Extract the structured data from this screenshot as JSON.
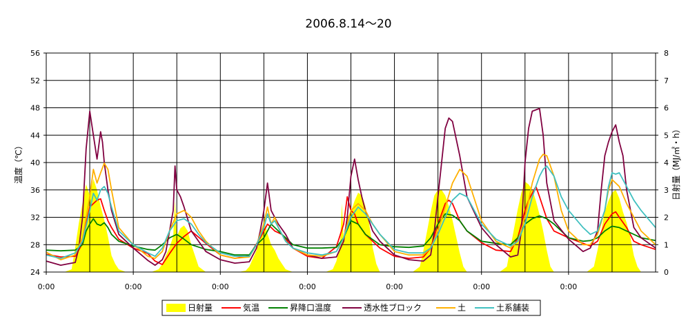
{
  "chart_data": {
    "type": "line",
    "title": "2006.8.14～20",
    "ylabel": "温度（℃）",
    "y2label": "日射量（MJ/㎡・h）",
    "ylim": [
      24,
      56
    ],
    "yticks": [
      24,
      28,
      32,
      36,
      40,
      44,
      48,
      52,
      56
    ],
    "y2lim": [
      0,
      8
    ],
    "y2ticks": [
      0,
      1,
      2,
      3,
      4,
      5,
      6,
      7,
      8
    ],
    "xlim": [
      0,
      168
    ],
    "xticks": [
      0,
      24,
      48,
      72,
      96,
      120,
      144
    ],
    "xtick_labels": [
      "0:00",
      "0:00",
      "0:00",
      "0:00",
      "0:00",
      "0:00",
      "0:00"
    ],
    "grid": true,
    "legend_position": "bottom",
    "series": [
      {
        "name": "日射量",
        "type": "area",
        "axis": "right",
        "color": "#ffff00",
        "x": [
          5,
          7,
          8,
          9,
          10,
          11,
          12,
          13,
          14,
          15,
          16,
          17,
          18,
          19,
          20,
          22,
          29,
          31,
          32,
          33,
          34,
          35,
          35.5,
          36,
          37,
          38,
          39,
          40,
          41,
          42,
          44,
          53,
          55,
          56,
          57,
          58,
          59,
          60,
          61,
          62,
          63,
          64,
          65,
          66,
          68,
          77,
          79,
          80,
          81,
          81.5,
          82,
          83,
          84,
          85,
          86,
          87,
          88,
          89,
          90,
          91,
          92,
          101,
          103,
          104,
          105,
          106,
          107,
          108,
          109,
          110,
          111,
          112,
          113,
          114,
          115,
          116,
          125,
          127,
          128,
          129,
          130,
          131,
          132,
          133,
          134,
          135,
          136,
          137,
          138,
          139,
          140,
          149,
          151,
          152,
          153,
          154,
          155,
          156,
          157,
          158,
          159,
          160,
          161,
          162,
          163,
          164
        ],
        "values": [
          0,
          0.1,
          0.9,
          1.8,
          2.5,
          3.2,
          2.8,
          3.4,
          3.0,
          2.4,
          1.9,
          1.3,
          0.6,
          0.3,
          0.1,
          0,
          0,
          0.1,
          0.3,
          0.6,
          0.9,
          1.3,
          2.6,
          1.3,
          1.6,
          1.7,
          1.5,
          1.0,
          0.6,
          0.2,
          0,
          0,
          0.05,
          0.2,
          0.5,
          0.8,
          1.3,
          1.9,
          1.4,
          1.0,
          0.8,
          0.5,
          0.3,
          0.1,
          0,
          0,
          0.1,
          0.4,
          1.0,
          2.5,
          1.2,
          2.0,
          2.2,
          2.6,
          2.9,
          2.8,
          2.4,
          1.8,
          0.9,
          0.3,
          0,
          0,
          0.2,
          0.8,
          1.5,
          2.2,
          2.8,
          3.0,
          3.0,
          2.8,
          2.4,
          1.9,
          1.3,
          0.7,
          0.2,
          0,
          0,
          0.2,
          0.9,
          1.6,
          2.3,
          2.9,
          3.3,
          3.2,
          3.0,
          2.6,
          2.1,
          1.5,
          0.8,
          0.2,
          0,
          0,
          0.2,
          0.8,
          1.5,
          2.2,
          2.6,
          2.9,
          3.0,
          2.7,
          2.2,
          1.8,
          1.3,
          0.6,
          0.2,
          0
        ]
      },
      {
        "name": "気温",
        "type": "line",
        "axis": "left",
        "color": "#ff0000",
        "x": [
          0,
          4,
          8,
          10,
          11,
          12,
          13,
          14,
          15,
          16,
          17,
          18,
          20,
          24,
          28,
          30,
          32,
          34,
          36,
          38,
          40,
          44,
          48,
          52,
          56,
          59,
          61,
          62,
          63,
          65,
          68,
          72,
          76,
          80,
          82,
          83,
          84,
          85,
          86,
          88,
          92,
          96,
          100,
          104,
          106,
          108,
          110,
          111,
          112,
          114,
          116,
          120,
          124,
          128,
          130,
          132,
          133,
          134,
          135,
          136,
          138,
          140,
          144,
          148,
          150,
          152,
          154,
          156,
          157,
          158,
          160,
          162,
          164,
          168
        ],
        "values": [
          26.6,
          26.2,
          26.3,
          28.2,
          31.0,
          33.5,
          34.0,
          34.5,
          34.7,
          33.0,
          31.5,
          30.5,
          28.8,
          27.5,
          26.7,
          25.6,
          25.1,
          26.7,
          28.2,
          29.2,
          30.0,
          28.2,
          26.5,
          26.0,
          26.4,
          29.0,
          31.0,
          30.5,
          30.0,
          29.5,
          27.5,
          26.3,
          26.0,
          27.7,
          31.0,
          35.0,
          33.0,
          32.5,
          31.0,
          29.5,
          27.5,
          26.3,
          26.0,
          26.2,
          27.5,
          31.0,
          34.0,
          34.5,
          34.0,
          31.5,
          30.0,
          28.3,
          27.2,
          27.0,
          29.0,
          33.0,
          34.5,
          35.5,
          36.5,
          35.0,
          31.8,
          30.0,
          29.0,
          28.2,
          27.8,
          28.5,
          31.0,
          32.5,
          32.8,
          32.0,
          30.5,
          28.5,
          28.0,
          27.3
        ]
      },
      {
        "name": "昇降口温度",
        "type": "line",
        "axis": "left",
        "color": "#008000",
        "x": [
          0,
          4,
          8,
          10,
          11,
          12,
          13,
          14,
          15,
          16,
          17,
          18,
          20,
          24,
          28,
          30,
          32,
          34,
          36,
          38,
          40,
          44,
          48,
          52,
          56,
          58,
          60,
          62,
          64,
          66,
          68,
          72,
          76,
          80,
          82,
          84,
          86,
          88,
          92,
          96,
          100,
          104,
          106,
          108,
          110,
          112,
          114,
          116,
          120,
          124,
          128,
          130,
          132,
          134,
          136,
          138,
          140,
          144,
          148,
          150,
          152,
          154,
          156,
          158,
          160,
          162,
          164,
          168
        ],
        "values": [
          27.2,
          27.1,
          27.2,
          28.0,
          30.0,
          31.0,
          31.8,
          31.0,
          30.8,
          31.2,
          30.5,
          29.5,
          28.5,
          27.8,
          27.3,
          27.2,
          28.0,
          29.0,
          29.5,
          28.8,
          28.0,
          27.3,
          27.0,
          26.5,
          26.5,
          28.0,
          29.0,
          31.0,
          30.0,
          29.0,
          28.0,
          27.5,
          27.5,
          27.6,
          29.0,
          31.5,
          31.0,
          29.5,
          28.0,
          27.7,
          27.6,
          27.8,
          29.0,
          31.0,
          32.5,
          32.3,
          31.5,
          30.0,
          28.5,
          28.2,
          28.0,
          29.0,
          31.0,
          31.8,
          32.2,
          31.8,
          31.0,
          29.0,
          28.5,
          28.6,
          29.0,
          30.0,
          30.7,
          30.5,
          30.0,
          29.5,
          29.0,
          28.6
        ]
      },
      {
        "name": "透水性ブロック",
        "type": "line",
        "axis": "left",
        "color": "#800040",
        "x": [
          0,
          4,
          8,
          9,
          10,
          11,
          12,
          13,
          14,
          15,
          15.5,
          16,
          17,
          18,
          20,
          24,
          28,
          30,
          32,
          33,
          34,
          35,
          35.5,
          36,
          37,
          38,
          40,
          44,
          48,
          52,
          56,
          58,
          59,
          60,
          61,
          62,
          63,
          64,
          66,
          68,
          72,
          76,
          80,
          82,
          83,
          84,
          85,
          86,
          87,
          88,
          90,
          92,
          96,
          100,
          104,
          106,
          107,
          108,
          109,
          110,
          111,
          112,
          114,
          116,
          120,
          124,
          128,
          130,
          131,
          132,
          133,
          134,
          135,
          136,
          137,
          138,
          140,
          144,
          148,
          150,
          152,
          153,
          154,
          155,
          156,
          157,
          158,
          159,
          160,
          162,
          164,
          168
        ],
        "values": [
          25.6,
          25.0,
          25.4,
          27.5,
          32.0,
          42.0,
          47.5,
          44.0,
          40.5,
          44.5,
          43.0,
          40.0,
          36.0,
          33.0,
          29.5,
          27.5,
          25.7,
          25.0,
          25.8,
          27.0,
          30.0,
          33.0,
          39.5,
          36.0,
          35.0,
          33.5,
          30.0,
          27.0,
          25.8,
          25.3,
          25.5,
          27.5,
          30.0,
          33.0,
          37.0,
          33.0,
          32.0,
          31.0,
          29.5,
          27.5,
          26.5,
          26.0,
          26.2,
          28.5,
          32.0,
          38.0,
          40.5,
          37.5,
          35.0,
          33.0,
          30.0,
          28.5,
          26.5,
          25.8,
          25.6,
          26.5,
          30.0,
          35.0,
          40.0,
          45.0,
          46.5,
          46.0,
          41.0,
          35.0,
          30.5,
          28.0,
          26.2,
          26.5,
          30.0,
          40.0,
          45.0,
          47.5,
          47.7,
          47.9,
          44.0,
          37.0,
          31.5,
          28.8,
          27.0,
          27.5,
          30.0,
          36.0,
          41.0,
          43.0,
          44.5,
          45.5,
          43.0,
          41.0,
          36.0,
          30.5,
          29.0,
          27.5
        ]
      },
      {
        "name": "土",
        "type": "line",
        "axis": "left",
        "color": "#ffb000",
        "x": [
          0,
          4,
          8,
          10,
          12,
          13,
          14,
          15,
          16,
          17,
          18,
          20,
          24,
          28,
          30,
          32,
          34,
          36,
          38,
          40,
          42,
          44,
          48,
          52,
          56,
          58,
          60,
          61,
          62,
          63,
          64,
          66,
          68,
          72,
          76,
          80,
          82,
          84,
          86,
          88,
          90,
          92,
          96,
          100,
          104,
          106,
          108,
          110,
          112,
          114,
          116,
          120,
          124,
          128,
          130,
          132,
          134,
          136,
          137,
          138,
          140,
          142,
          144,
          148,
          150,
          152,
          154,
          155,
          156,
          157,
          158,
          160,
          162,
          164,
          168
        ],
        "values": [
          26.9,
          25.8,
          26.5,
          29.0,
          35.0,
          39.0,
          37.0,
          38.5,
          39.9,
          39.0,
          36.0,
          30.5,
          28.0,
          26.3,
          26.0,
          27.0,
          30.0,
          32.5,
          33.0,
          32.0,
          30.0,
          28.5,
          26.5,
          26.0,
          26.2,
          28.0,
          31.0,
          33.5,
          31.0,
          32.0,
          30.5,
          28.5,
          27.5,
          26.5,
          26.3,
          27.0,
          29.0,
          33.0,
          34.0,
          33.0,
          31.0,
          29.5,
          27.0,
          26.5,
          26.5,
          27.5,
          30.0,
          33.5,
          37.0,
          39.0,
          38.0,
          31.5,
          28.5,
          27.5,
          28.5,
          32.0,
          37.0,
          40.5,
          41.2,
          41.0,
          38.0,
          33.0,
          30.0,
          28.0,
          28.0,
          29.5,
          33.0,
          36.0,
          37.5,
          37.0,
          36.5,
          34.0,
          32.0,
          30.0,
          28.0
        ]
      },
      {
        "name": "土系舗装",
        "type": "line",
        "axis": "left",
        "color": "#40c0c0",
        "x": [
          0,
          4,
          8,
          10,
          12,
          13,
          14,
          15,
          16,
          17,
          18,
          20,
          24,
          28,
          30,
          32,
          34,
          36,
          38,
          40,
          42,
          44,
          48,
          52,
          56,
          58,
          60,
          61,
          62,
          63,
          64,
          66,
          68,
          72,
          76,
          80,
          82,
          84,
          86,
          88,
          90,
          92,
          96,
          100,
          104,
          106,
          108,
          110,
          112,
          114,
          116,
          120,
          124,
          128,
          130,
          132,
          134,
          136,
          137,
          138,
          140,
          142,
          144,
          148,
          150,
          152,
          154,
          155,
          156,
          157,
          158,
          160,
          162,
          164,
          168
        ],
        "values": [
          26.5,
          26.0,
          26.8,
          28.5,
          33.0,
          35.5,
          34.5,
          36.0,
          36.5,
          35.5,
          33.5,
          30.0,
          28.0,
          26.8,
          26.3,
          27.5,
          30.0,
          31.5,
          31.8,
          31.0,
          29.5,
          28.3,
          26.8,
          26.3,
          26.3,
          28.0,
          30.5,
          32.5,
          31.0,
          31.5,
          30.5,
          28.5,
          27.5,
          26.8,
          26.5,
          27.0,
          29.0,
          32.0,
          33.5,
          32.5,
          31.0,
          29.5,
          27.3,
          26.8,
          26.8,
          27.5,
          29.5,
          32.0,
          34.5,
          35.5,
          35.0,
          31.0,
          28.8,
          27.8,
          28.5,
          31.0,
          35.0,
          38.0,
          39.0,
          39.5,
          38.0,
          35.0,
          33.0,
          30.5,
          29.5,
          30.0,
          33.0,
          36.5,
          38.5,
          38.3,
          38.5,
          36.5,
          34.5,
          33.0,
          30.5
        ]
      }
    ]
  }
}
